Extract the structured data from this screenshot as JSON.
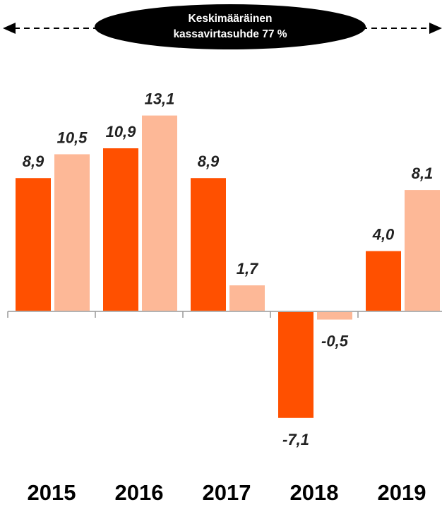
{
  "banner": {
    "line1": "Keskimääräinen",
    "line2": "kassavirtasuhde 77 %"
  },
  "colors": {
    "series_dark": "#ff5000",
    "series_light": "#fdb897",
    "axis": "#999999",
    "banner_bg": "#000000"
  },
  "chart_data": {
    "type": "bar",
    "title": "",
    "xlabel": "",
    "ylabel": "",
    "categories": [
      "2015",
      "2016",
      "2017",
      "2018",
      "2019"
    ],
    "series": [
      {
        "values": [
          8.9,
          10.9,
          8.9,
          -7.1,
          4.0
        ],
        "labels": [
          "8,9",
          "10,9",
          "8,9",
          "-7,1",
          "4,0"
        ],
        "color": "#ff5000"
      },
      {
        "values": [
          10.5,
          13.1,
          1.7,
          -0.5,
          8.1
        ],
        "labels": [
          "10,5",
          "13,1",
          "1,7",
          "-0,5",
          "8,1"
        ],
        "color": "#fdb897"
      }
    ],
    "annotation": "Keskimääräinen kassavirtasuhde 77 %",
    "grid": false,
    "legend": "none"
  }
}
